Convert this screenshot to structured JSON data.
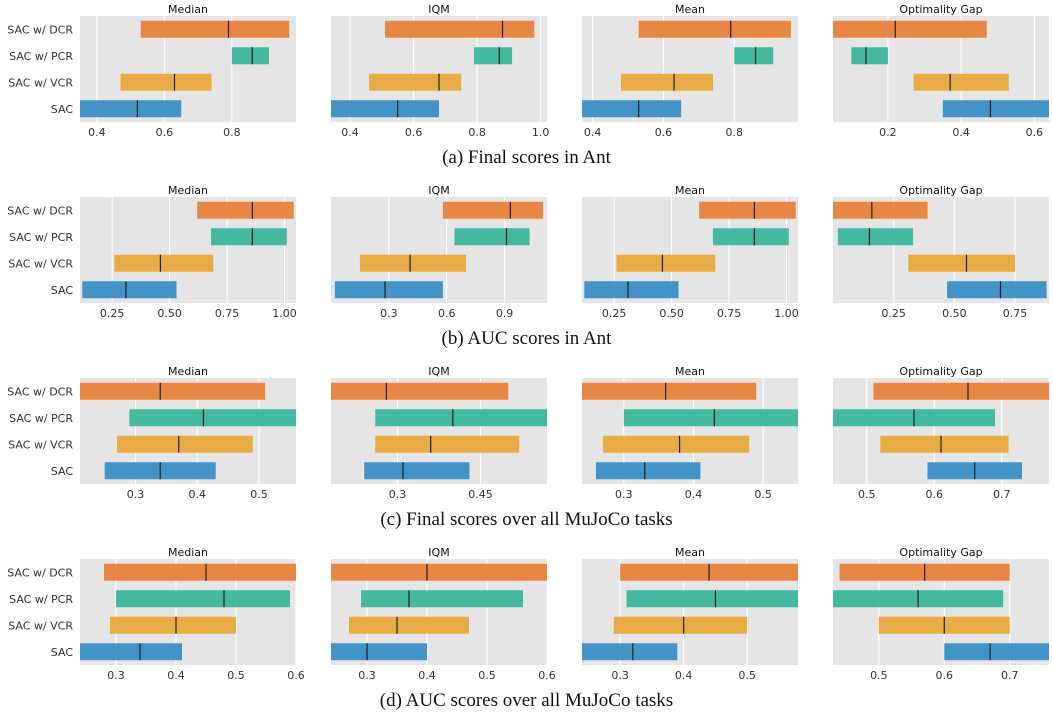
{
  "chart_data": [
    {
      "type": "bar",
      "section": "a",
      "caption": "(a) Final scores in Ant",
      "algorithms": [
        "SAC w/ DCR",
        "SAC w/ PCR",
        "SAC w/ VCR",
        "SAC"
      ],
      "colors": [
        "#e8823a",
        "#3bb69b",
        "#e9a93c",
        "#3a8fc4"
      ],
      "panels": [
        {
          "title": "Median",
          "xlim": [
            0.35,
            0.99
          ],
          "xticks": [
            0.4,
            0.6,
            0.8
          ],
          "intervals": [
            [
              0.53,
              0.97,
              0.79
            ],
            [
              0.8,
              0.91,
              0.86
            ],
            [
              0.47,
              0.74,
              0.63
            ],
            [
              0.35,
              0.65,
              0.52
            ]
          ]
        },
        {
          "title": "IQM",
          "xlim": [
            0.34,
            1.02
          ],
          "xticks": [
            0.4,
            0.6,
            0.8,
            1.0
          ],
          "intervals": [
            [
              0.51,
              0.98,
              0.88
            ],
            [
              0.79,
              0.91,
              0.87
            ],
            [
              0.46,
              0.75,
              0.68
            ],
            [
              0.34,
              0.68,
              0.55
            ]
          ]
        },
        {
          "title": "Mean",
          "xlim": [
            0.37,
            0.98
          ],
          "xticks": [
            0.4,
            0.6,
            0.8
          ],
          "intervals": [
            [
              0.53,
              0.96,
              0.79
            ],
            [
              0.8,
              0.91,
              0.86
            ],
            [
              0.48,
              0.74,
              0.63
            ],
            [
              0.37,
              0.65,
              0.53
            ]
          ]
        },
        {
          "title": "Optimality Gap",
          "xlim": [
            0.05,
            0.64
          ],
          "xticks": [
            0.2,
            0.4,
            0.6
          ],
          "intervals": [
            [
              0.05,
              0.47,
              0.22
            ],
            [
              0.1,
              0.2,
              0.14
            ],
            [
              0.27,
              0.53,
              0.37
            ],
            [
              0.35,
              0.64,
              0.48
            ]
          ]
        }
      ]
    },
    {
      "type": "bar",
      "section": "b",
      "caption": "(b) AUC scores in Ant",
      "algorithms": [
        "SAC w/ DCR",
        "SAC w/ PCR",
        "SAC w/ VCR",
        "SAC"
      ],
      "colors": [
        "#e8823a",
        "#3bb69b",
        "#e9a93c",
        "#3a8fc4"
      ],
      "panels": [
        {
          "title": "Median",
          "xlim": [
            0.11,
            1.05
          ],
          "xticks": [
            0.25,
            0.5,
            0.75,
            1.0
          ],
          "xtick_labels": [
            "0.25",
            "0.50",
            "0.75",
            "1.00"
          ],
          "intervals": [
            [
              0.62,
              1.04,
              0.86
            ],
            [
              0.68,
              1.01,
              0.86
            ],
            [
              0.26,
              0.69,
              0.46
            ],
            [
              0.12,
              0.53,
              0.31
            ]
          ]
        },
        {
          "title": "IQM",
          "xlim": [
            0.0,
            1.12
          ],
          "xticks": [
            0.3,
            0.6,
            0.9
          ],
          "intervals": [
            [
              0.58,
              1.1,
              0.93
            ],
            [
              0.64,
              1.03,
              0.91
            ],
            [
              0.15,
              0.7,
              0.41
            ],
            [
              0.02,
              0.58,
              0.28
            ]
          ]
        },
        {
          "title": "Mean",
          "xlim": [
            0.11,
            1.05
          ],
          "xticks": [
            0.25,
            0.5,
            0.75,
            1.0
          ],
          "xtick_labels": [
            "0.25",
            "0.50",
            "0.75",
            "1.00"
          ],
          "intervals": [
            [
              0.62,
              1.04,
              0.86
            ],
            [
              0.68,
              1.01,
              0.86
            ],
            [
              0.26,
              0.69,
              0.46
            ],
            [
              0.12,
              0.53,
              0.31
            ]
          ]
        },
        {
          "title": "Optimality Gap",
          "xlim": [
            0.0,
            0.89
          ],
          "xticks": [
            0.25,
            0.5,
            0.75
          ],
          "xtick_labels": [
            "0.25",
            "0.50",
            "0.75"
          ],
          "intervals": [
            [
              0.0,
              0.39,
              0.16
            ],
            [
              0.02,
              0.33,
              0.15
            ],
            [
              0.31,
              0.75,
              0.55
            ],
            [
              0.47,
              0.88,
              0.69
            ]
          ]
        }
      ]
    },
    {
      "type": "bar",
      "section": "c",
      "caption": "(c) Final scores over all MuJoCo tasks",
      "algorithms": [
        "SAC w/ DCR",
        "SAC w/ PCR",
        "SAC w/ VCR",
        "SAC"
      ],
      "colors": [
        "#e8823a",
        "#3bb69b",
        "#e9a93c",
        "#3a8fc4"
      ],
      "panels": [
        {
          "title": "Median",
          "xlim": [
            0.21,
            0.56
          ],
          "xticks": [
            0.3,
            0.4,
            0.5
          ],
          "intervals": [
            [
              0.21,
              0.51,
              0.34
            ],
            [
              0.29,
              0.56,
              0.41
            ],
            [
              0.27,
              0.49,
              0.37
            ],
            [
              0.25,
              0.43,
              0.34
            ]
          ]
        },
        {
          "title": "IQM",
          "xlim": [
            0.18,
            0.57
          ],
          "xticks": [
            0.3,
            0.45
          ],
          "intervals": [
            [
              0.18,
              0.5,
              0.28
            ],
            [
              0.26,
              0.57,
              0.4
            ],
            [
              0.26,
              0.52,
              0.36
            ],
            [
              0.24,
              0.43,
              0.31
            ]
          ]
        },
        {
          "title": "Mean",
          "xlim": [
            0.24,
            0.55
          ],
          "xticks": [
            0.3,
            0.4,
            0.5
          ],
          "intervals": [
            [
              0.24,
              0.49,
              0.36
            ],
            [
              0.3,
              0.55,
              0.43
            ],
            [
              0.27,
              0.48,
              0.38
            ],
            [
              0.26,
              0.41,
              0.33
            ]
          ]
        },
        {
          "title": "Optimality Gap",
          "xlim": [
            0.45,
            0.77
          ],
          "xticks": [
            0.5,
            0.6,
            0.7
          ],
          "intervals": [
            [
              0.51,
              0.77,
              0.65
            ],
            [
              0.45,
              0.69,
              0.57
            ],
            [
              0.52,
              0.71,
              0.61
            ],
            [
              0.59,
              0.73,
              0.66
            ]
          ]
        }
      ]
    },
    {
      "type": "bar",
      "section": "d",
      "caption": "(d) AUC scores over all MuJoCo tasks",
      "algorithms": [
        "SAC w/ DCR",
        "SAC w/ PCR",
        "SAC w/ VCR",
        "SAC"
      ],
      "colors": [
        "#e8823a",
        "#3bb69b",
        "#e9a93c",
        "#3a8fc4"
      ],
      "panels": [
        {
          "title": "Median",
          "xlim": [
            0.24,
            0.6
          ],
          "xticks": [
            0.3,
            0.4,
            0.5,
            0.6
          ],
          "intervals": [
            [
              0.28,
              0.6,
              0.45
            ],
            [
              0.3,
              0.59,
              0.48
            ],
            [
              0.29,
              0.5,
              0.4
            ],
            [
              0.24,
              0.41,
              0.34
            ]
          ]
        },
        {
          "title": "IQM",
          "xlim": [
            0.24,
            0.6
          ],
          "xticks": [
            0.3,
            0.4,
            0.5,
            0.6
          ],
          "intervals": [
            [
              0.24,
              0.6,
              0.4
            ],
            [
              0.29,
              0.56,
              0.37
            ],
            [
              0.27,
              0.47,
              0.35
            ],
            [
              0.24,
              0.4,
              0.3
            ]
          ]
        },
        {
          "title": "Mean",
          "xlim": [
            0.24,
            0.58
          ],
          "xticks": [
            0.3,
            0.4,
            0.5
          ],
          "intervals": [
            [
              0.3,
              0.58,
              0.44
            ],
            [
              0.31,
              0.58,
              0.45
            ],
            [
              0.29,
              0.5,
              0.4
            ],
            [
              0.24,
              0.39,
              0.32
            ]
          ]
        },
        {
          "title": "Optimality Gap",
          "xlim": [
            0.43,
            0.76
          ],
          "xticks": [
            0.5,
            0.6,
            0.7
          ],
          "intervals": [
            [
              0.44,
              0.7,
              0.57
            ],
            [
              0.43,
              0.69,
              0.56
            ],
            [
              0.5,
              0.7,
              0.6
            ],
            [
              0.6,
              0.76,
              0.67
            ]
          ]
        }
      ]
    }
  ]
}
